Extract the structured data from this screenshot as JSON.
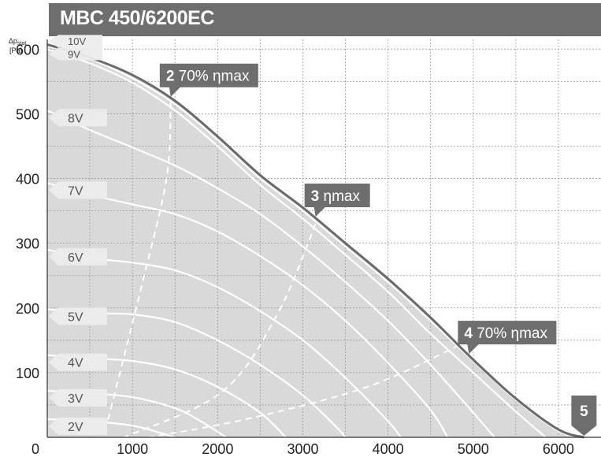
{
  "title": "MBC 450/6200EC",
  "chart_data": {
    "type": "line",
    "title": "MBC 450/6200EC",
    "xlabel": "",
    "ylabel_main": "Δp",
    "ylabel_sub": "stat",
    "ylabel_unit": "[Pa]",
    "xlim": [
      0,
      6500
    ],
    "ylim": [
      0,
      615
    ],
    "xticks": [
      0,
      1000,
      2000,
      3000,
      4000,
      5000,
      6000
    ],
    "yticks": [
      100,
      200,
      300,
      400,
      500,
      600
    ],
    "grid": true,
    "max_curve": [
      [
        0,
        607
      ],
      [
        500,
        587
      ],
      [
        1000,
        560
      ],
      [
        1500,
        520
      ],
      [
        2000,
        465
      ],
      [
        2500,
        405
      ],
      [
        3000,
        355
      ],
      [
        3500,
        300
      ],
      [
        4000,
        245
      ],
      [
        4500,
        185
      ],
      [
        5000,
        120
      ],
      [
        5500,
        60
      ],
      [
        6000,
        12
      ],
      [
        6300,
        0
      ]
    ],
    "series": [
      {
        "name": "10V",
        "points": [
          [
            0,
            605
          ],
          [
            500,
            585
          ],
          [
            1000,
            555
          ],
          [
            1500,
            515
          ],
          [
            2000,
            460
          ],
          [
            2500,
            400
          ],
          [
            3000,
            350
          ],
          [
            3500,
            295
          ],
          [
            4000,
            240
          ],
          [
            4500,
            180
          ],
          [
            5000,
            118
          ],
          [
            5500,
            58
          ],
          [
            6000,
            10
          ],
          [
            6250,
            0
          ]
        ]
      },
      {
        "name": "9V",
        "points": [
          [
            0,
            600
          ],
          [
            500,
            578
          ],
          [
            1000,
            548
          ],
          [
            1500,
            505
          ],
          [
            2000,
            450
          ],
          [
            2500,
            390
          ],
          [
            3000,
            338
          ],
          [
            3500,
            282
          ],
          [
            4000,
            225
          ],
          [
            4500,
            160
          ],
          [
            5000,
            100
          ],
          [
            5500,
            40
          ],
          [
            5850,
            0
          ]
        ]
      },
      {
        "name": "8V",
        "points": [
          [
            0,
            505
          ],
          [
            500,
            475
          ],
          [
            1000,
            448
          ],
          [
            1500,
            420
          ],
          [
            2000,
            385
          ],
          [
            2500,
            345
          ],
          [
            3000,
            295
          ],
          [
            3500,
            240
          ],
          [
            4000,
            180
          ],
          [
            4500,
            112
          ],
          [
            5000,
            38
          ],
          [
            5250,
            0
          ]
        ]
      },
      {
        "name": "7V",
        "points": [
          [
            0,
            393
          ],
          [
            500,
            375
          ],
          [
            1000,
            360
          ],
          [
            1500,
            345
          ],
          [
            2000,
            318
          ],
          [
            2500,
            280
          ],
          [
            3000,
            235
          ],
          [
            3500,
            180
          ],
          [
            4000,
            115
          ],
          [
            4500,
            42
          ],
          [
            4700,
            0
          ]
        ]
      },
      {
        "name": "6V",
        "points": [
          [
            0,
            290
          ],
          [
            500,
            277
          ],
          [
            1000,
            270
          ],
          [
            1500,
            258
          ],
          [
            2000,
            232
          ],
          [
            2500,
            195
          ],
          [
            3000,
            150
          ],
          [
            3500,
            92
          ],
          [
            4000,
            25
          ],
          [
            4150,
            0
          ]
        ]
      },
      {
        "name": "5V",
        "points": [
          [
            0,
            198
          ],
          [
            500,
            192
          ],
          [
            1000,
            190
          ],
          [
            1500,
            178
          ],
          [
            2000,
            150
          ],
          [
            2500,
            112
          ],
          [
            3000,
            65
          ],
          [
            3400,
            15
          ],
          [
            3500,
            0
          ]
        ]
      },
      {
        "name": "4V",
        "points": [
          [
            0,
            127
          ],
          [
            500,
            122
          ],
          [
            1000,
            118
          ],
          [
            1500,
            105
          ],
          [
            2000,
            78
          ],
          [
            2500,
            38
          ],
          [
            2800,
            0
          ]
        ]
      },
      {
        "name": "3V",
        "points": [
          [
            0,
            72
          ],
          [
            500,
            68
          ],
          [
            1000,
            62
          ],
          [
            1500,
            45
          ],
          [
            1800,
            25
          ],
          [
            2100,
            0
          ]
        ]
      },
      {
        "name": "2V",
        "points": [
          [
            0,
            28
          ],
          [
            500,
            25
          ],
          [
            1000,
            18
          ],
          [
            1300,
            8
          ],
          [
            1500,
            0
          ]
        ]
      }
    ],
    "efficiency_lines": [
      {
        "label": "70% ηmax",
        "points": [
          [
            1450,
            520
          ],
          [
            1400,
            400
          ],
          [
            1100,
            230
          ],
          [
            700,
            20
          ]
        ]
      },
      {
        "label": "ηmax",
        "points": [
          [
            3150,
            330
          ],
          [
            2700,
            190
          ],
          [
            2050,
            70
          ],
          [
            900,
            0
          ]
        ]
      },
      {
        "label": "70% ηmax",
        "points": [
          [
            4950,
            150
          ],
          [
            3800,
            80
          ],
          [
            2400,
            30
          ],
          [
            1200,
            0
          ]
        ]
      }
    ],
    "annotations": [
      {
        "num": "2",
        "text": "70% ηmax",
        "x": 1450,
        "y": 520
      },
      {
        "num": "3",
        "text": "ηmax",
        "x": 3150,
        "y": 345
      },
      {
        "num": "4",
        "text": "70% ηmax",
        "x": 4950,
        "y": 150
      },
      {
        "num": "5",
        "text": "",
        "x": 6300,
        "y": 0
      }
    ],
    "colors": {
      "fill": "#d9d9d9",
      "grid": "#9a9a9a",
      "title_bg": "#6e6e6e",
      "label_bg": "#6e6e6e",
      "curve": "#ffffff",
      "max_line": "#6a6a6a",
      "volt_tab": "#ececec"
    }
  }
}
